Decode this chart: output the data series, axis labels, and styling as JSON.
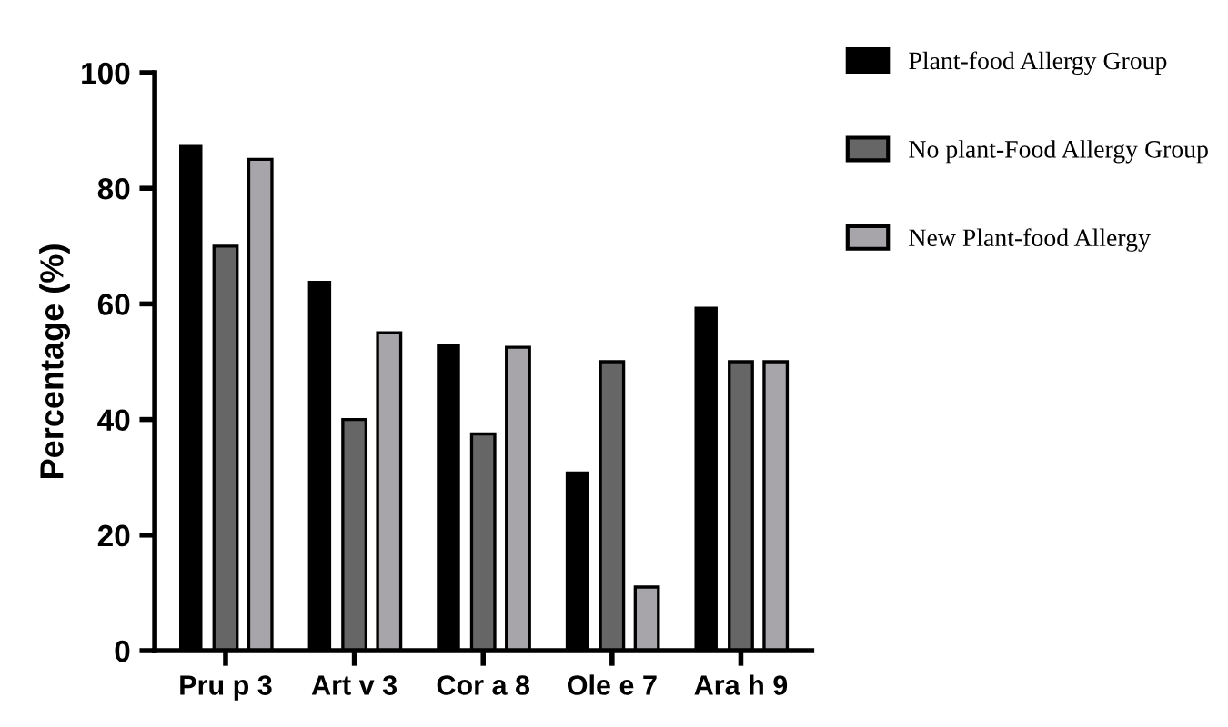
{
  "chart_data": {
    "type": "bar",
    "ylabel": "Percentage (%)",
    "categories": [
      "Pru p 3",
      "Art v 3",
      "Cor a 8",
      "Ole e 7",
      "Ara h 9"
    ],
    "series": [
      {
        "name": "Plant-food Allergy Group",
        "color": "#000000",
        "values": [
          87.5,
          64,
          53,
          31,
          59.5
        ]
      },
      {
        "name": "No plant-Food Allergy Group",
        "color": "#666666",
        "values": [
          70,
          40,
          37.5,
          50,
          50
        ]
      },
      {
        "name": "New Plant-food Allergy",
        "color": "#a7a5aa",
        "values": [
          85,
          55,
          52.5,
          11,
          50
        ]
      }
    ],
    "ylim": [
      0,
      100
    ],
    "yticks": [
      0,
      20,
      40,
      60,
      80,
      100
    ],
    "grid": false,
    "legend": "top right"
  }
}
